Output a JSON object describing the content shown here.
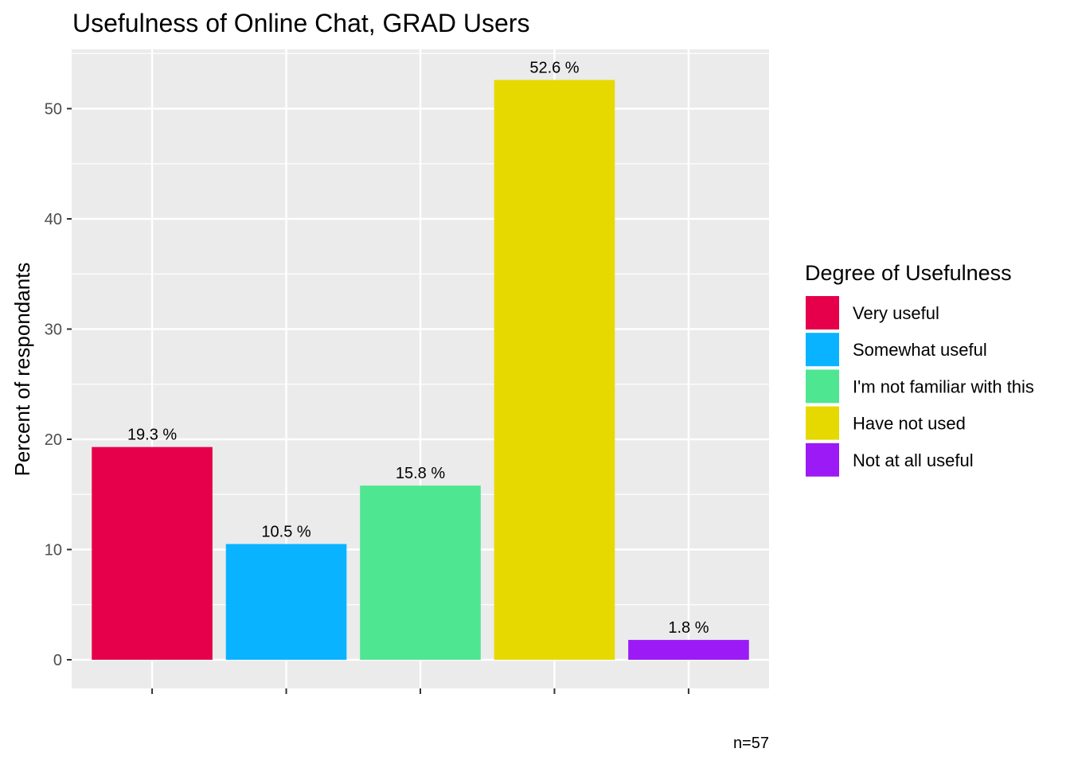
{
  "chart_data": {
    "type": "bar",
    "title": "Usefulness of Online Chat,  GRAD Users",
    "xlabel": "",
    "ylabel": "Percent of respondants",
    "caption": "n=57",
    "categories": [
      "Very useful",
      "Somewhat useful",
      "I'm not familiar with this",
      "Have not used",
      "Not at all useful"
    ],
    "values": [
      19.3,
      10.5,
      15.8,
      52.6,
      1.8
    ],
    "value_labels": [
      "19.3 %",
      "10.5 %",
      "15.8 %",
      "52.6 %",
      "1.8 %"
    ],
    "colors": [
      "#E6004C",
      "#0AB3FF",
      "#4FE691",
      "#E6D900",
      "#9B1AF5"
    ],
    "ylim": [
      0,
      55
    ],
    "y_ticks": [
      0,
      10,
      20,
      30,
      40,
      50
    ],
    "x_tick_labels_shown": false,
    "grid": true,
    "panel_background": "#EBEBEB",
    "legend": {
      "title": "Degree of Usefulness",
      "placement": "right",
      "items": [
        "Very useful",
        "Somewhat useful",
        "I'm not familiar with this",
        "Have not used",
        "Not at all useful"
      ]
    }
  }
}
